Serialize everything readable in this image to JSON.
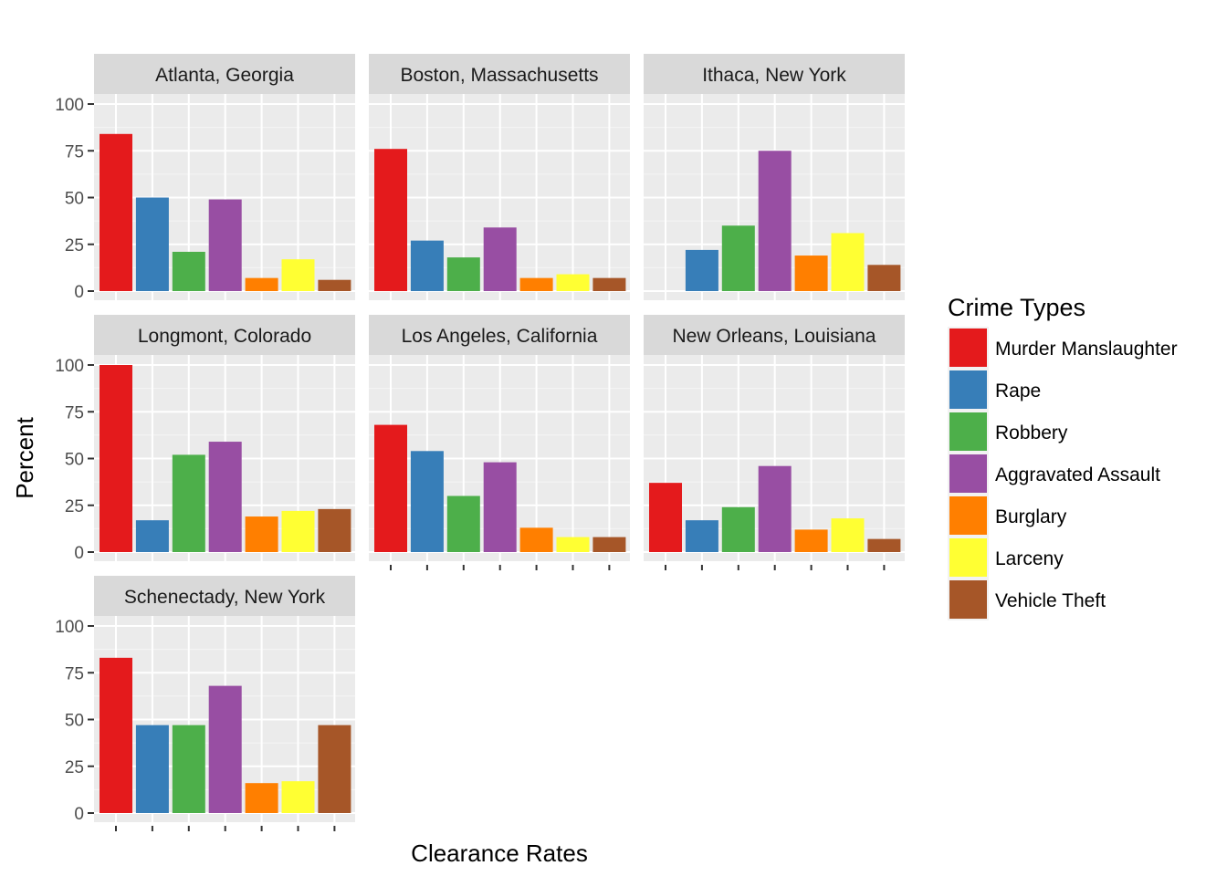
{
  "chart_data": {
    "type": "bar",
    "xlabel": "Clearance Rates",
    "ylabel": "Percent",
    "ylim": [
      0,
      100
    ],
    "yticks": [
      "0",
      "25",
      "50",
      "75",
      "100"
    ],
    "grid": true,
    "facet_layout": "wrap, 3 columns",
    "legend": {
      "title": "Crime Types",
      "placement": "right",
      "entries": [
        {
          "name": "Murder Manslaughter",
          "color": "#E41A1C"
        },
        {
          "name": "Rape",
          "color": "#377EB8"
        },
        {
          "name": "Robbery",
          "color": "#4DAF4A"
        },
        {
          "name": "Aggravated Assault",
          "color": "#984EA3"
        },
        {
          "name": "Burglary",
          "color": "#FF7F00"
        },
        {
          "name": "Larceny",
          "color": "#FFFF33"
        },
        {
          "name": "Vehicle Theft",
          "color": "#A65628"
        }
      ]
    },
    "panels": [
      {
        "title": "Atlanta, Georgia",
        "values": [
          84,
          50,
          21,
          49,
          7,
          17,
          6
        ]
      },
      {
        "title": "Boston, Massachusetts",
        "values": [
          76,
          27,
          18,
          34,
          7,
          9,
          7
        ]
      },
      {
        "title": "Ithaca, New York",
        "values": [
          0,
          22,
          35,
          75,
          19,
          31,
          14
        ]
      },
      {
        "title": "Longmont, Colorado",
        "values": [
          100,
          17,
          52,
          59,
          19,
          22,
          23
        ]
      },
      {
        "title": "Los Angeles, California",
        "values": [
          68,
          54,
          30,
          48,
          13,
          8,
          8
        ]
      },
      {
        "title": "New Orleans, Louisiana",
        "values": [
          37,
          17,
          24,
          46,
          12,
          18,
          7
        ]
      },
      {
        "title": "Schenectady, New York",
        "values": [
          83,
          47,
          47,
          68,
          16,
          17,
          47
        ]
      }
    ]
  }
}
